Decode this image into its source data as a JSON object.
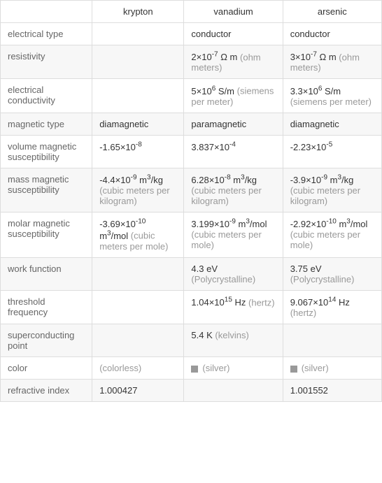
{
  "columns": [
    "",
    "krypton",
    "vanadium",
    "arsenic"
  ],
  "rows": [
    {
      "label": "electrical type",
      "cells": [
        {
          "value": "",
          "unit": ""
        },
        {
          "value": "conductor",
          "unit": ""
        },
        {
          "value": "conductor",
          "unit": ""
        }
      ]
    },
    {
      "label": "resistivity",
      "cells": [
        {
          "value": "",
          "unit": ""
        },
        {
          "value": "2×10^-7 Ω m",
          "unit": "(ohm meters)"
        },
        {
          "value": "3×10^-7 Ω m",
          "unit": "(ohm meters)"
        }
      ]
    },
    {
      "label": "electrical conductivity",
      "cells": [
        {
          "value": "",
          "unit": ""
        },
        {
          "value": "5×10^6 S/m",
          "unit": "(siemens per meter)"
        },
        {
          "value": "3.3×10^6 S/m",
          "unit": "(siemens per meter)"
        }
      ]
    },
    {
      "label": "magnetic type",
      "cells": [
        {
          "value": "diamagnetic",
          "unit": ""
        },
        {
          "value": "paramagnetic",
          "unit": ""
        },
        {
          "value": "diamagnetic",
          "unit": ""
        }
      ]
    },
    {
      "label": "volume magnetic susceptibility",
      "cells": [
        {
          "value": "-1.65×10^-8",
          "unit": ""
        },
        {
          "value": "3.837×10^-4",
          "unit": ""
        },
        {
          "value": "-2.23×10^-5",
          "unit": ""
        }
      ]
    },
    {
      "label": "mass magnetic susceptibility",
      "cells": [
        {
          "value": "-4.4×10^-9 m^3/kg",
          "unit": "(cubic meters per kilogram)"
        },
        {
          "value": "6.28×10^-8 m^3/kg",
          "unit": "(cubic meters per kilogram)"
        },
        {
          "value": "-3.9×10^-9 m^3/kg",
          "unit": "(cubic meters per kilogram)"
        }
      ]
    },
    {
      "label": "molar magnetic susceptibility",
      "cells": [
        {
          "value": "-3.69×10^-10 m^3/mol",
          "unit": "(cubic meters per mole)"
        },
        {
          "value": "3.199×10^-9 m^3/mol",
          "unit": "(cubic meters per mole)"
        },
        {
          "value": "-2.92×10^-10 m^3/mol",
          "unit": "(cubic meters per mole)"
        }
      ]
    },
    {
      "label": "work function",
      "cells": [
        {
          "value": "",
          "unit": ""
        },
        {
          "value": "4.3 eV",
          "unit": "(Polycrystalline)"
        },
        {
          "value": "3.75 eV",
          "unit": "(Polycrystalline)"
        }
      ]
    },
    {
      "label": "threshold frequency",
      "cells": [
        {
          "value": "",
          "unit": ""
        },
        {
          "value": "1.04×10^15 Hz",
          "unit": "(hertz)"
        },
        {
          "value": "9.067×10^14 Hz",
          "unit": "(hertz)"
        }
      ]
    },
    {
      "label": "superconducting point",
      "cells": [
        {
          "value": "",
          "unit": ""
        },
        {
          "value": "5.4 K",
          "unit": "(kelvins)"
        },
        {
          "value": "",
          "unit": ""
        }
      ]
    },
    {
      "label": "color",
      "cells": [
        {
          "value": "(colorless)",
          "unit": "",
          "swatch": false,
          "gray": true
        },
        {
          "value": "(silver)",
          "unit": "",
          "swatch": true,
          "gray": true
        },
        {
          "value": "(silver)",
          "unit": "",
          "swatch": true,
          "gray": true
        }
      ]
    },
    {
      "label": "refractive index",
      "cells": [
        {
          "value": "1.000427",
          "unit": ""
        },
        {
          "value": "",
          "unit": ""
        },
        {
          "value": "1.001552",
          "unit": ""
        }
      ]
    }
  ],
  "colwidths": [
    "130px",
    "130px",
    "140px",
    "140px"
  ],
  "colors": {
    "border": "#ddd",
    "alt_row": "#f7f7f7",
    "text": "#333",
    "muted": "#999",
    "label": "#666"
  },
  "font_size": 13
}
